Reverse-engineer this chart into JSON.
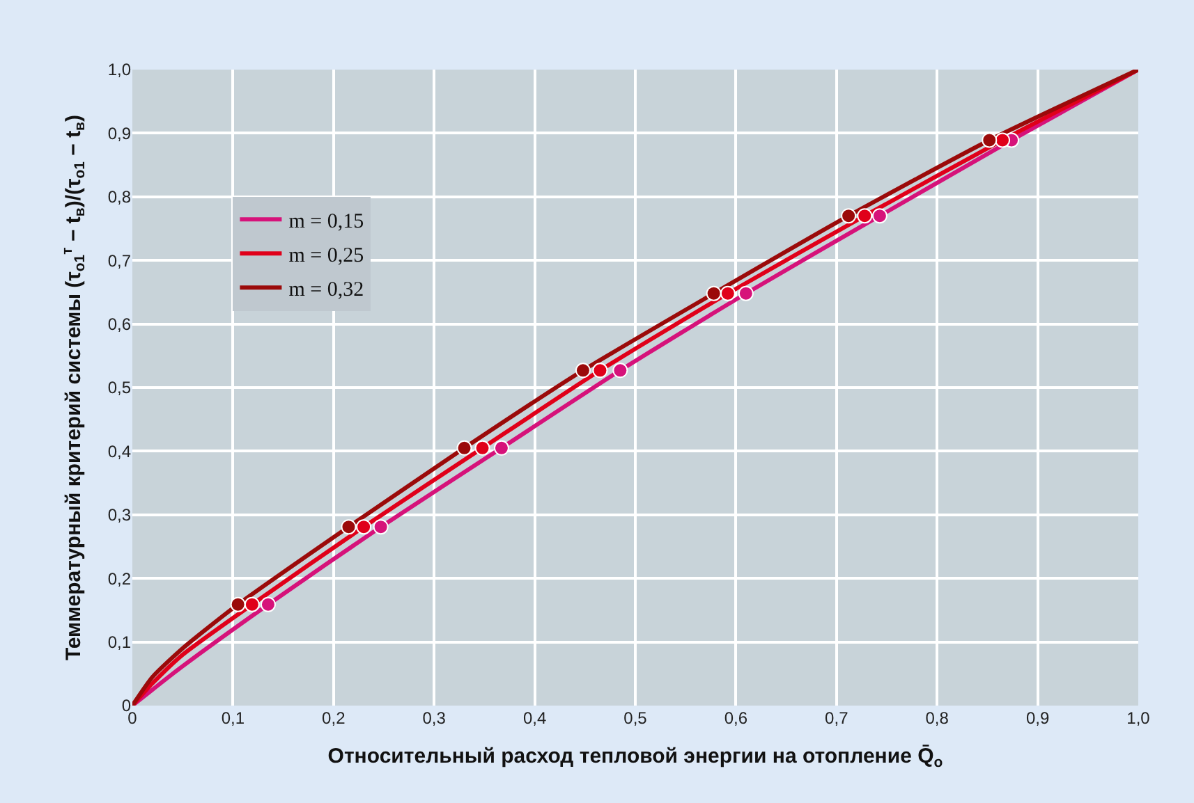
{
  "chart_data": {
    "type": "line",
    "xlabel": "Относительный расход тепловой энергии на отопление Q̄$_{o}$",
    "ylabel": "Теммературный критерий системы (τ$_{o1}$$^{т}$ − t$_{в}$)/(τ$_{o1}$ − t$_{в}$)",
    "xlim": [
      0,
      1
    ],
    "ylim": [
      0,
      1
    ],
    "xticks": [
      0,
      {
        "value": 0.1,
        "label": "0,1"
      },
      {
        "value": 0.2,
        "label": "0,2"
      },
      {
        "value": 0.3,
        "label": "0,3"
      },
      {
        "value": 0.4,
        "label": "0,4"
      },
      {
        "value": 0.5,
        "label": "0,5"
      },
      {
        "value": 0.6,
        "label": "0,6"
      },
      {
        "value": 0.7,
        "label": "0,7"
      },
      {
        "value": 0.8,
        "label": "0,8"
      },
      {
        "value": 0.9,
        "label": "0,9"
      },
      {
        "value": 1,
        "label": "1,0"
      }
    ],
    "yticks": [
      0,
      {
        "value": 0.1,
        "label": "0,1"
      },
      {
        "value": 0.2,
        "label": "0,2"
      },
      {
        "value": 0.3,
        "label": "0,3"
      },
      {
        "value": 0.4,
        "label": "0,4"
      },
      {
        "value": 0.5,
        "label": "0,5"
      },
      {
        "value": 0.6,
        "label": "0,6"
      },
      {
        "value": 0.7,
        "label": "0,7"
      },
      {
        "value": 0.8,
        "label": "0,8"
      },
      {
        "value": 0.9,
        "label": "0,9"
      },
      {
        "value": 1,
        "label": "1,0"
      }
    ],
    "grid": true,
    "legend": "top left",
    "line_style": "solid",
    "series": [
      {
        "name": "m = 0,15",
        "marker": "none",
        "color": "#d6127a",
        "x": [
          0,
          0.02,
          0.05,
          0.135,
          0.247,
          0.367,
          0.485,
          0.61,
          0.743,
          0.874,
          1
        ],
        "values": [
          0,
          0.025,
          0.062,
          0.159,
          0.281,
          0.405,
          0.527,
          0.648,
          0.77,
          0.889,
          1
        ]
      },
      {
        "name": "m = 0,25",
        "marker": "none",
        "color": "#e0001a",
        "x": [
          0,
          0.02,
          0.05,
          0.119,
          0.23,
          0.348,
          0.465,
          0.592,
          0.728,
          0.865,
          1
        ],
        "values": [
          0,
          0.035,
          0.08,
          0.159,
          0.281,
          0.405,
          0.527,
          0.648,
          0.77,
          0.889,
          1
        ]
      },
      {
        "name": "m = 0,32",
        "marker": "none",
        "color": "#9b0a0a",
        "x": [
          0,
          0.02,
          0.05,
          0.105,
          0.215,
          0.33,
          0.448,
          0.578,
          0.712,
          0.852,
          1
        ],
        "values": [
          0,
          0.045,
          0.09,
          0.159,
          0.281,
          0.405,
          0.527,
          0.648,
          0.77,
          0.889,
          1
        ]
      },
      {
        "type": "scatter",
        "marker": "circle",
        "color": "#d6127a",
        "x": [
          0.135,
          0.247,
          0.367,
          0.485,
          0.61,
          0.743,
          0.874
        ],
        "values": [
          0.159,
          0.281,
          0.405,
          0.527,
          0.648,
          0.77,
          0.889
        ]
      },
      {
        "type": "scatter",
        "marker": "circle",
        "color": "#e0001a",
        "x": [
          0.119,
          0.23,
          0.348,
          0.465,
          0.592,
          0.728,
          0.865
        ],
        "values": [
          0.159,
          0.281,
          0.405,
          0.527,
          0.648,
          0.77,
          0.889
        ]
      },
      {
        "type": "scatter",
        "marker": "circle",
        "color": "#9b0a0a",
        "x": [
          0.105,
          0.215,
          0.33,
          0.448,
          0.578,
          0.712,
          0.852
        ],
        "values": [
          0.159,
          0.281,
          0.405,
          0.527,
          0.648,
          0.77,
          0.889
        ]
      }
    ]
  }
}
